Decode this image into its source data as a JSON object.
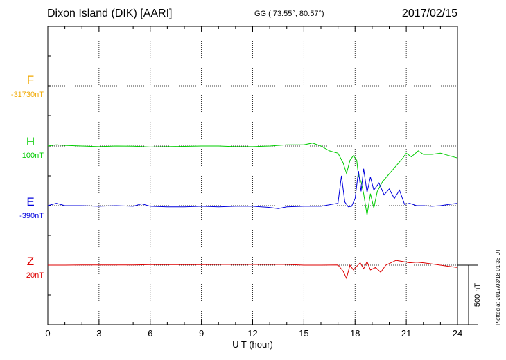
{
  "header": {
    "station": "Dixon Island (DIK)  [AARI]",
    "coords": "GG ( 73.55°,  80.57°)",
    "date": "2017/02/15"
  },
  "channels": [
    {
      "letter": "F",
      "baseline": "-31730nT",
      "color": "#f0a800"
    },
    {
      "letter": "H",
      "baseline": "100nT",
      "color": "#00cc00"
    },
    {
      "letter": "E",
      "baseline": "-390nT",
      "color": "#0000dd"
    },
    {
      "letter": "Z",
      "baseline": "20nT",
      "color": "#dd0000"
    }
  ],
  "footer": {
    "plotted": "Plotted at 2017/03/18 01:36 UT"
  },
  "chart_data": {
    "type": "line",
    "xlabel": "U T (hour)",
    "xlim": [
      0,
      24
    ],
    "x_ticks": [
      0,
      3,
      6,
      9,
      12,
      15,
      18,
      21,
      24
    ],
    "scale_bar_label": "500 nT",
    "scale_bar_nT": 500,
    "series": [
      {
        "name": "H",
        "color": "#00cc00",
        "x": [
          0,
          0.5,
          1,
          2,
          3,
          4,
          5,
          6,
          7,
          8,
          9,
          10,
          11,
          12,
          13,
          14,
          15,
          15.5,
          16,
          16.5,
          17,
          17.3,
          17.5,
          17.7,
          17.9,
          18.1,
          18.2,
          18.35,
          18.5,
          18.7,
          18.9,
          19.1,
          19.3,
          19.6,
          19.9,
          20.2,
          20.5,
          20.8,
          21,
          21.3,
          21.7,
          22,
          22.5,
          23,
          23.5,
          24
        ],
        "y": [
          100,
          110,
          105,
          100,
          95,
          100,
          98,
          92,
          95,
          97,
          100,
          100,
          95,
          95,
          100,
          110,
          110,
          125,
          100,
          60,
          40,
          -40,
          -130,
          -20,
          20,
          -20,
          -150,
          -200,
          -300,
          -480,
          -300,
          -420,
          -280,
          -200,
          -150,
          -100,
          -50,
          0,
          40,
          10,
          60,
          30,
          30,
          40,
          20,
          0
        ]
      },
      {
        "name": "E",
        "color": "#0000dd",
        "x": [
          0,
          0.5,
          1,
          2,
          3,
          4,
          5,
          5.5,
          6,
          7,
          8,
          9,
          10,
          11,
          12,
          13,
          13.5,
          14,
          15,
          16,
          17,
          17.2,
          17.4,
          17.6,
          17.8,
          18,
          18.2,
          18.35,
          18.5,
          18.7,
          18.9,
          19.1,
          19.4,
          19.7,
          20,
          20.3,
          20.6,
          20.9,
          21.2,
          21.6,
          22,
          22.5,
          23,
          23.5,
          24
        ],
        "y": [
          -390,
          -370,
          -390,
          -390,
          -395,
          -390,
          -395,
          -375,
          -395,
          -400,
          -400,
          -395,
          -400,
          -395,
          -395,
          -405,
          -415,
          -400,
          -395,
          -395,
          -370,
          -140,
          -360,
          -400,
          -395,
          -330,
          -100,
          -270,
          -80,
          -280,
          -150,
          -260,
          -200,
          -300,
          -250,
          -330,
          -260,
          -380,
          -370,
          -390,
          -390,
          -395,
          -390,
          -380,
          -370
        ]
      },
      {
        "name": "Z",
        "color": "#dd0000",
        "x": [
          0,
          1,
          2,
          3,
          4,
          5,
          6,
          7,
          8,
          9,
          10,
          11,
          12,
          13,
          14,
          15,
          16,
          17,
          17.3,
          17.5,
          17.7,
          17.9,
          18.1,
          18.3,
          18.5,
          18.7,
          18.9,
          19.2,
          19.5,
          19.8,
          20.1,
          20.4,
          20.8,
          21.2,
          21.6,
          22,
          22.5,
          23,
          23.5,
          24
        ],
        "y": [
          20,
          20,
          22,
          22,
          22,
          22,
          24,
          24,
          24,
          24,
          26,
          26,
          26,
          26,
          26,
          20,
          20,
          22,
          -30,
          -90,
          20,
          -20,
          10,
          40,
          -10,
          50,
          -20,
          0,
          -40,
          20,
          40,
          60,
          50,
          40,
          45,
          40,
          30,
          20,
          10,
          0
        ]
      }
    ]
  }
}
